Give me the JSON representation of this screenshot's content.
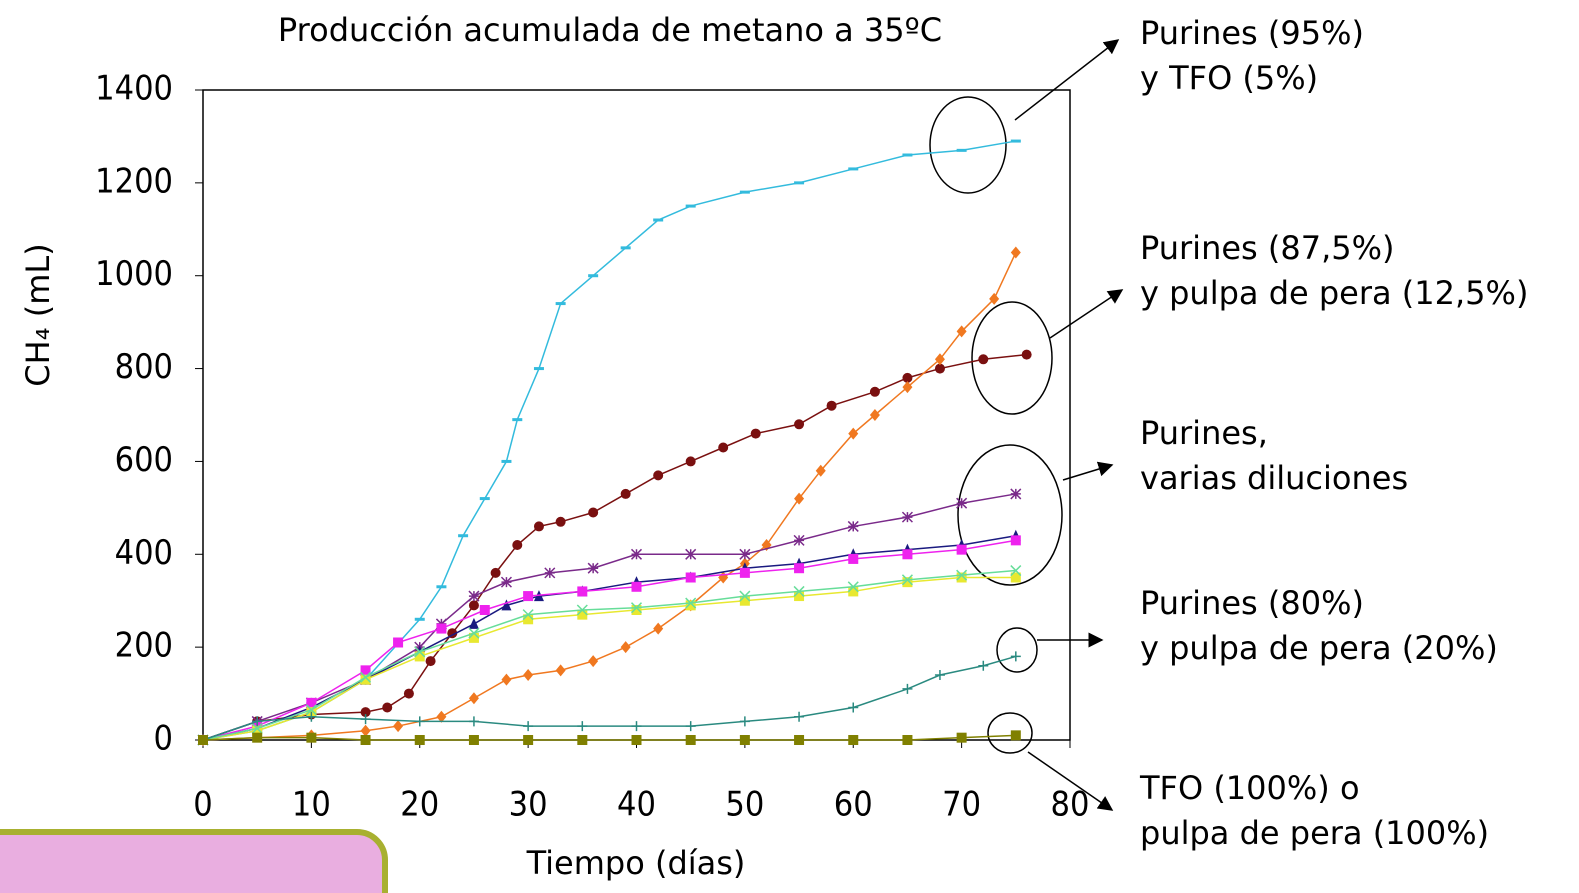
{
  "chart_data": {
    "type": "line",
    "title": "Producción acumulada de metano a 35ºC",
    "x_label": "Tiempo (días)",
    "y_label": "CH₄ (mL)",
    "xlim": [
      0,
      80
    ],
    "xticks": [
      0,
      10,
      20,
      30,
      40,
      50,
      60,
      70,
      80
    ],
    "ylim": [
      0,
      1400
    ],
    "yticks": [
      0,
      200,
      400,
      600,
      800,
      1000,
      1200,
      1400
    ],
    "series": [
      {
        "color": "#33bbdd",
        "marker": "dash",
        "x": [
          0,
          5,
          10,
          15,
          20,
          22,
          24,
          26,
          28,
          29,
          31,
          33,
          36,
          39,
          42,
          45,
          50,
          55,
          60,
          65,
          70,
          75
        ],
        "values": [
          0,
          20,
          60,
          130,
          260,
          330,
          440,
          520,
          600,
          690,
          800,
          940,
          1000,
          1060,
          1120,
          1150,
          1180,
          1200,
          1230,
          1260,
          1270,
          1290
        ]
      },
      {
        "color": "#7a1010",
        "marker": "circle",
        "x": [
          0,
          5,
          10,
          15,
          17,
          19,
          21,
          23,
          25,
          27,
          29,
          31,
          33,
          36,
          39,
          42,
          45,
          48,
          51,
          55,
          58,
          62,
          65,
          68,
          72,
          76
        ],
        "values": [
          0,
          40,
          55,
          60,
          70,
          100,
          170,
          230,
          290,
          360,
          420,
          460,
          470,
          490,
          530,
          570,
          600,
          630,
          660,
          680,
          720,
          750,
          780,
          800,
          820,
          830
        ]
      },
      {
        "color": "#f07820",
        "marker": "diamond",
        "x": [
          0,
          10,
          15,
          18,
          22,
          25,
          28,
          30,
          33,
          36,
          39,
          42,
          45,
          48,
          50,
          52,
          55,
          57,
          60,
          62,
          65,
          68,
          70,
          73,
          75
        ],
        "values": [
          0,
          10,
          20,
          30,
          50,
          90,
          130,
          140,
          150,
          170,
          200,
          240,
          290,
          350,
          380,
          420,
          520,
          580,
          660,
          700,
          760,
          820,
          880,
          950,
          1050
        ]
      },
      {
        "color": "#7a2a8a",
        "marker": "star",
        "x": [
          0,
          5,
          10,
          15,
          20,
          22,
          25,
          28,
          32,
          36,
          40,
          45,
          50,
          55,
          60,
          65,
          70,
          75
        ],
        "values": [
          0,
          40,
          80,
          130,
          200,
          250,
          310,
          340,
          360,
          370,
          400,
          400,
          400,
          430,
          460,
          480,
          510,
          530
        ]
      },
      {
        "color": "#1a1a80",
        "marker": "triangle",
        "x": [
          0,
          5,
          10,
          15,
          20,
          25,
          28,
          31,
          35,
          40,
          45,
          50,
          55,
          60,
          65,
          70,
          75
        ],
        "values": [
          0,
          25,
          70,
          130,
          190,
          250,
          290,
          310,
          320,
          340,
          350,
          370,
          380,
          400,
          410,
          420,
          440
        ]
      },
      {
        "color": "#ee22ee",
        "marker": "square",
        "x": [
          0,
          5,
          10,
          15,
          18,
          22,
          26,
          30,
          35,
          40,
          45,
          50,
          55,
          60,
          65,
          70,
          75
        ],
        "values": [
          0,
          30,
          80,
          150,
          210,
          240,
          280,
          310,
          320,
          330,
          350,
          360,
          370,
          390,
          400,
          410,
          430
        ]
      },
      {
        "color": "#e8e830",
        "marker": "square",
        "x": [
          0,
          5,
          10,
          15,
          20,
          25,
          30,
          35,
          40,
          45,
          50,
          55,
          60,
          65,
          70,
          75
        ],
        "values": [
          0,
          20,
          60,
          130,
          180,
          220,
          260,
          270,
          280,
          290,
          300,
          310,
          320,
          340,
          350,
          350
        ]
      },
      {
        "color": "#66dd99",
        "marker": "x",
        "x": [
          0,
          5,
          10,
          15,
          20,
          25,
          30,
          35,
          40,
          45,
          50,
          55,
          60,
          65,
          70,
          75
        ],
        "values": [
          0,
          25,
          65,
          135,
          190,
          230,
          270,
          280,
          285,
          295,
          310,
          320,
          330,
          345,
          355,
          365
        ]
      },
      {
        "color": "#2a8a80",
        "marker": "plus",
        "x": [
          0,
          5,
          10,
          15,
          20,
          25,
          30,
          35,
          40,
          45,
          50,
          55,
          60,
          65,
          68,
          72,
          75
        ],
        "values": [
          0,
          40,
          50,
          45,
          40,
          40,
          30,
          30,
          30,
          30,
          40,
          50,
          70,
          110,
          140,
          160,
          180
        ]
      },
      {
        "color": "#808000",
        "marker": "square",
        "x": [
          0,
          5,
          10,
          15,
          20,
          25,
          30,
          35,
          40,
          45,
          50,
          55,
          60,
          65,
          70,
          75
        ],
        "values": [
          0,
          5,
          5,
          0,
          0,
          0,
          0,
          0,
          0,
          0,
          0,
          0,
          0,
          0,
          5,
          10
        ]
      }
    ],
    "annotations": [
      [
        "Purines (95%)",
        "y TFO (5%)"
      ],
      [
        "Purines (87,5%)",
        "y pulpa de pera (12,5%)"
      ],
      [
        "Purines,",
        "varias diluciones"
      ],
      [
        "Purines (80%)",
        "y pulpa de pera (20%)"
      ],
      [
        "TFO (100%) o",
        "pulpa de pera (100%)"
      ]
    ]
  }
}
